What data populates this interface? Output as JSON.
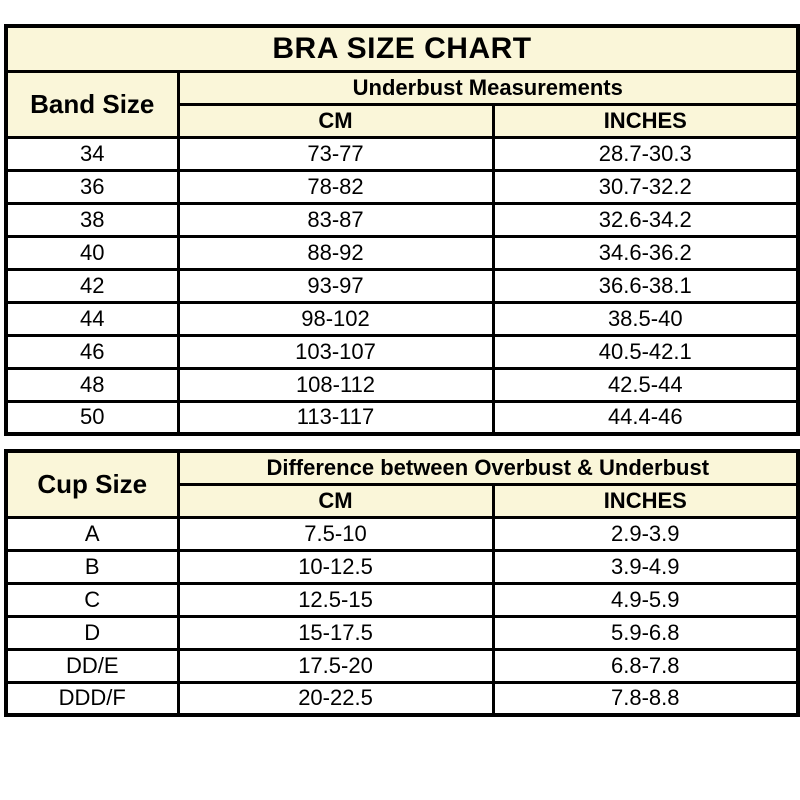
{
  "colors": {
    "header_bg": "#FAF6D9",
    "border": "#000000",
    "text": "#000000",
    "data_row_bg": "#FFFFFF"
  },
  "chart_data": [
    {
      "type": "table",
      "title": "BRA SIZE CHART",
      "corner_header": "Band Size",
      "group_header": "Underbust Measurements",
      "columns": [
        "CM",
        "INCHES"
      ],
      "rows": [
        [
          "34",
          "73-77",
          "28.7-30.3"
        ],
        [
          "36",
          "78-82",
          "30.7-32.2"
        ],
        [
          "38",
          "83-87",
          "32.6-34.2"
        ],
        [
          "40",
          "88-92",
          "34.6-36.2"
        ],
        [
          "42",
          "93-97",
          "36.6-38.1"
        ],
        [
          "44",
          "98-102",
          "38.5-40"
        ],
        [
          "46",
          "103-107",
          "40.5-42.1"
        ],
        [
          "48",
          "108-112",
          "42.5-44"
        ],
        [
          "50",
          "113-117",
          "44.4-46"
        ]
      ]
    },
    {
      "type": "table",
      "corner_header": "Cup Size",
      "group_header": "Difference between Overbust & Underbust",
      "columns": [
        "CM",
        "INCHES"
      ],
      "rows": [
        [
          "A",
          "7.5-10",
          "2.9-3.9"
        ],
        [
          "B",
          "10-12.5",
          "3.9-4.9"
        ],
        [
          "C",
          "12.5-15",
          "4.9-5.9"
        ],
        [
          "D",
          "15-17.5",
          "5.9-6.8"
        ],
        [
          "DD/E",
          "17.5-20",
          "6.8-7.8"
        ],
        [
          "DDD/F",
          "20-22.5",
          "7.8-8.8"
        ]
      ]
    }
  ]
}
